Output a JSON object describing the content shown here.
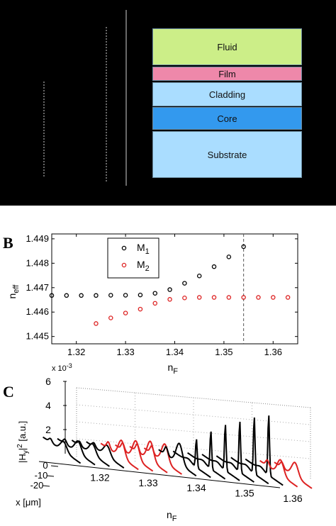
{
  "panelA": {
    "layers": [
      {
        "label": "Fluid",
        "color": "#ccee88"
      },
      {
        "label": "Film",
        "color": "#ee88aa"
      },
      {
        "label": "Cladding",
        "color": "#aaddff"
      },
      {
        "label": "Core",
        "color": "#3399ee"
      },
      {
        "label": "Substrate",
        "color": "#aaddff"
      }
    ]
  },
  "panelB": {
    "letter": "B",
    "chart_data": {
      "type": "scatter",
      "xlabel": "n",
      "xlabel_sub": "F",
      "ylabel": "n",
      "ylabel_sub": "eff",
      "xlim": [
        1.315,
        1.365
      ],
      "ylim": [
        1.4447,
        1.4492
      ],
      "xticks": [
        "1.32",
        "1.33",
        "1.34",
        "1.35",
        "1.36"
      ],
      "yticks": [
        "1.445",
        "1.446",
        "1.447",
        "1.448",
        "1.449"
      ],
      "exponent_label": "x 10",
      "exponent_value": "-3",
      "vline_x": 1.354,
      "legend_position": "top-center",
      "series": [
        {
          "name": "M",
          "sub": "1",
          "color": "#000000",
          "x": [
            1.315,
            1.318,
            1.321,
            1.324,
            1.327,
            1.33,
            1.333,
            1.336,
            1.339,
            1.342,
            1.345,
            1.348,
            1.351,
            1.354
          ],
          "y": [
            1.44668,
            1.44668,
            1.44668,
            1.44668,
            1.44669,
            1.44669,
            1.4467,
            1.44677,
            1.44692,
            1.44718,
            1.44748,
            1.44786,
            1.44826,
            1.44868
          ]
        },
        {
          "name": "M",
          "sub": "2",
          "color": "#dd2222",
          "x": [
            1.324,
            1.327,
            1.33,
            1.333,
            1.336,
            1.339,
            1.342,
            1.345,
            1.348,
            1.351,
            1.354,
            1.357,
            1.36,
            1.363
          ],
          "y": [
            1.44553,
            1.44576,
            1.44596,
            1.44612,
            1.44636,
            1.44652,
            1.44658,
            1.4466,
            1.4466,
            1.4466,
            1.4466,
            1.4466,
            1.4466,
            1.4466
          ]
        }
      ]
    }
  },
  "panelC": {
    "letter": "C",
    "chart_data": {
      "type": "line",
      "zlabel": "|H",
      "zlabel_sub": "y",
      "zlabel_sup": "2",
      "zlabel_tail": " [a.u.]",
      "xlabel": "n",
      "xlabel_sub": "F",
      "ylabel": "x [μm]",
      "zticks": [
        "2",
        "4",
        "6"
      ],
      "yticks": [
        "0",
        "-10",
        "-20"
      ],
      "xticks": [
        "1.32",
        "1.33",
        "1.34",
        "1.35",
        "1.36"
      ],
      "xlim": [
        1.31,
        1.36
      ],
      "slices": [
        {
          "nF": 1.312,
          "color": "#000000",
          "peak": 0.9
        },
        {
          "nF": 1.315,
          "color": "#000000",
          "peak": 1.1
        },
        {
          "nF": 1.318,
          "color": "#000000",
          "peak": 1.0
        },
        {
          "nF": 1.321,
          "color": "#000000",
          "peak": 1.0
        },
        {
          "nF": 1.324,
          "color": "#dd2222",
          "peak": 1.6
        },
        {
          "nF": 1.327,
          "color": "#dd2222",
          "peak": 1.7
        },
        {
          "nF": 1.33,
          "color": "#dd2222",
          "peak": 1.8
        },
        {
          "nF": 1.333,
          "color": "#dd2222",
          "peak": 1.7
        },
        {
          "nF": 1.336,
          "color": "#000000",
          "peak": 1.9
        },
        {
          "nF": 1.339,
          "color": "#000000",
          "peak": 2.4
        },
        {
          "nF": 1.342,
          "color": "#000000",
          "peak": 3.2
        },
        {
          "nF": 1.345,
          "color": "#000000",
          "peak": 3.9
        },
        {
          "nF": 1.348,
          "color": "#000000",
          "peak": 4.3
        },
        {
          "nF": 1.351,
          "color": "#000000",
          "peak": 4.8
        },
        {
          "nF": 1.354,
          "color": "#000000",
          "peak": 5.1
        },
        {
          "nF": 1.357,
          "color": "#dd2222",
          "peak": 1.4
        },
        {
          "nF": 1.36,
          "color": "#dd2222",
          "peak": 1.3
        }
      ]
    }
  }
}
